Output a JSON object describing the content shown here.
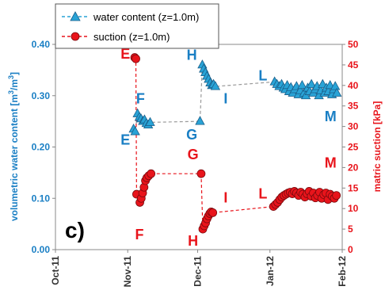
{
  "chart_data": {
    "type": "scatter",
    "panel_label": "c)",
    "y_left": {
      "label_main": "volumetric water content [m",
      "label_sup1": "3",
      "label_mid": "/m",
      "label_sup2": "3",
      "label_end": "]",
      "ylim": [
        0.0,
        0.4
      ],
      "ticks": [
        "0.00",
        "0.10",
        "0.20",
        "0.30",
        "0.40"
      ],
      "tick_values": [
        0.0,
        0.1,
        0.2,
        0.3,
        0.4
      ],
      "color": "#1a7fc4"
    },
    "y_right": {
      "label": "matric suction [kPa]",
      "ylim": [
        0,
        50
      ],
      "ticks": [
        "0",
        "5",
        "10",
        "15",
        "20",
        "25",
        "30",
        "35",
        "40",
        "45",
        "50"
      ],
      "tick_values": [
        0,
        5,
        10,
        15,
        20,
        25,
        30,
        35,
        40,
        45,
        50
      ],
      "color": "#e8141b"
    },
    "x_axis": {
      "ticks": [
        "Oct-11",
        "Nov-11",
        "Dec-11",
        "Jan-12",
        "Feb-12"
      ],
      "tick_days": [
        0,
        31,
        61,
        92,
        123
      ],
      "xlim_days": [
        0,
        123
      ]
    },
    "legend": {
      "placement": "top-left",
      "entries": [
        "water content (z=1.0m)",
        "suction (z=1.0m)"
      ]
    },
    "series": [
      {
        "name": "water content (z=1.0m)",
        "axis": "left",
        "color": "#29a3d6",
        "marker": "triangle",
        "points": [
          [
            33.5,
            0.235
          ],
          [
            34.2,
            0.23
          ],
          [
            35.2,
            0.265
          ],
          [
            36.0,
            0.258
          ],
          [
            36.7,
            0.255
          ],
          [
            37.5,
            0.25
          ],
          [
            38.2,
            0.253
          ],
          [
            39.0,
            0.246
          ],
          [
            39.8,
            0.243
          ],
          [
            40.6,
            0.248
          ],
          [
            62.0,
            0.25
          ],
          [
            63.0,
            0.36
          ],
          [
            63.6,
            0.352
          ],
          [
            64.3,
            0.345
          ],
          [
            65.0,
            0.338
          ],
          [
            65.7,
            0.332
          ],
          [
            66.4,
            0.325
          ],
          [
            67.1,
            0.32
          ],
          [
            67.8,
            0.322
          ],
          [
            68.6,
            0.318
          ],
          [
            94.0,
            0.327
          ],
          [
            95.0,
            0.322
          ],
          [
            96.0,
            0.318
          ],
          [
            97.0,
            0.322
          ],
          [
            97.8,
            0.315
          ],
          [
            98.6,
            0.312
          ],
          [
            99.4,
            0.32
          ],
          [
            100.2,
            0.308
          ],
          [
            101.0,
            0.316
          ],
          [
            101.8,
            0.305
          ],
          [
            102.6,
            0.312
          ],
          [
            103.4,
            0.318
          ],
          [
            104.2,
            0.302
          ],
          [
            105.0,
            0.31
          ],
          [
            105.8,
            0.32
          ],
          [
            106.6,
            0.305
          ],
          [
            107.4,
            0.3
          ],
          [
            108.2,
            0.315
          ],
          [
            109.0,
            0.308
          ],
          [
            109.8,
            0.322
          ],
          [
            110.6,
            0.305
          ],
          [
            111.4,
            0.312
          ],
          [
            112.2,
            0.318
          ],
          [
            113.0,
            0.3
          ],
          [
            113.8,
            0.31
          ],
          [
            114.6,
            0.322
          ],
          [
            115.4,
            0.305
          ],
          [
            116.2,
            0.315
          ],
          [
            117.0,
            0.308
          ],
          [
            117.8,
            0.32
          ],
          [
            118.6,
            0.302
          ],
          [
            119.3,
            0.312
          ],
          [
            120.0,
            0.318
          ],
          [
            120.7,
            0.305
          ]
        ],
        "gaps": [
          [
            34.2,
            35.2
          ],
          [
            40.6,
            62.0
          ],
          [
            68.6,
            94.0
          ]
        ]
      },
      {
        "name": "suction (z=1.0m)",
        "axis": "right",
        "color": "#e8141b",
        "marker": "circle",
        "points": [
          [
            34.0,
            46.8
          ],
          [
            34.5,
            46.5
          ],
          [
            34.8,
            13.5
          ],
          [
            36.2,
            11.5
          ],
          [
            36.8,
            12.5
          ],
          [
            37.4,
            13.8
          ],
          [
            38.0,
            15.2
          ],
          [
            38.6,
            16.8
          ],
          [
            39.2,
            17.5
          ],
          [
            40.0,
            18.0
          ],
          [
            41.0,
            18.5
          ],
          [
            62.5,
            18.5
          ],
          [
            63.2,
            5.0
          ],
          [
            63.8,
            5.8
          ],
          [
            64.4,
            6.5
          ],
          [
            65.0,
            7.5
          ],
          [
            65.6,
            8.2
          ],
          [
            66.2,
            8.8
          ],
          [
            66.8,
            9.2
          ],
          [
            67.5,
            9.0
          ],
          [
            93.5,
            10.5
          ],
          [
            94.4,
            11.0
          ],
          [
            95.3,
            11.5
          ],
          [
            96.2,
            12.2
          ],
          [
            97.1,
            12.8
          ],
          [
            98.0,
            13.2
          ],
          [
            98.9,
            13.5
          ],
          [
            99.8,
            13.8
          ],
          [
            100.7,
            14.0
          ],
          [
            101.6,
            13.6
          ],
          [
            102.5,
            14.2
          ],
          [
            103.4,
            13.8
          ],
          [
            104.3,
            13.2
          ],
          [
            105.2,
            14.0
          ],
          [
            106.1,
            13.5
          ],
          [
            107.0,
            12.8
          ],
          [
            107.9,
            13.6
          ],
          [
            108.8,
            14.2
          ],
          [
            109.7,
            13.0
          ],
          [
            110.6,
            13.8
          ],
          [
            111.5,
            12.6
          ],
          [
            112.4,
            13.2
          ],
          [
            113.3,
            14.0
          ],
          [
            114.2,
            12.5
          ],
          [
            115.1,
            13.4
          ],
          [
            116.0,
            13.8
          ],
          [
            116.9,
            12.2
          ],
          [
            117.8,
            13.5
          ],
          [
            118.7,
            13.0
          ],
          [
            119.6,
            12.5
          ],
          [
            120.5,
            13.2
          ]
        ],
        "gaps": [
          [
            34.5,
            34.8
          ],
          [
            34.8,
            36.2
          ],
          [
            41.0,
            62.5
          ],
          [
            62.5,
            63.2
          ],
          [
            67.5,
            93.5
          ]
        ]
      }
    ],
    "annotations": [
      {
        "text": "E",
        "color": "#e8141b",
        "axis": "right",
        "x": 30.0,
        "y": 46.5
      },
      {
        "text": "E",
        "color": "#1a7fc4",
        "axis": "left",
        "x": 30.0,
        "y": 0.205
      },
      {
        "text": "F",
        "color": "#1a7fc4",
        "axis": "left",
        "x": 36.5,
        "y": 0.285
      },
      {
        "text": "F",
        "color": "#e8141b",
        "axis": "right",
        "x": 36.0,
        "y": 2.5
      },
      {
        "text": "G",
        "color": "#1a7fc4",
        "axis": "left",
        "x": 58.5,
        "y": 0.215
      },
      {
        "text": "G",
        "color": "#e8141b",
        "axis": "right",
        "x": 59.0,
        "y": 22.0
      },
      {
        "text": "H",
        "color": "#1a7fc4",
        "axis": "left",
        "x": 58.5,
        "y": 0.37
      },
      {
        "text": "H",
        "color": "#e8141b",
        "axis": "right",
        "x": 59.0,
        "y": 1.0
      },
      {
        "text": "I",
        "color": "#1a7fc4",
        "axis": "left",
        "x": 73.0,
        "y": 0.285
      },
      {
        "text": "I",
        "color": "#e8141b",
        "axis": "right",
        "x": 73.0,
        "y": 11.5
      },
      {
        "text": "L",
        "color": "#1a7fc4",
        "axis": "left",
        "x": 89.0,
        "y": 0.33
      },
      {
        "text": "L",
        "color": "#e8141b",
        "axis": "right",
        "x": 89.0,
        "y": 12.5
      },
      {
        "text": "M",
        "color": "#1a7fc4",
        "axis": "left",
        "x": 118.0,
        "y": 0.25
      },
      {
        "text": "M",
        "color": "#e8141b",
        "axis": "right",
        "x": 118.0,
        "y": 20.0
      }
    ]
  }
}
